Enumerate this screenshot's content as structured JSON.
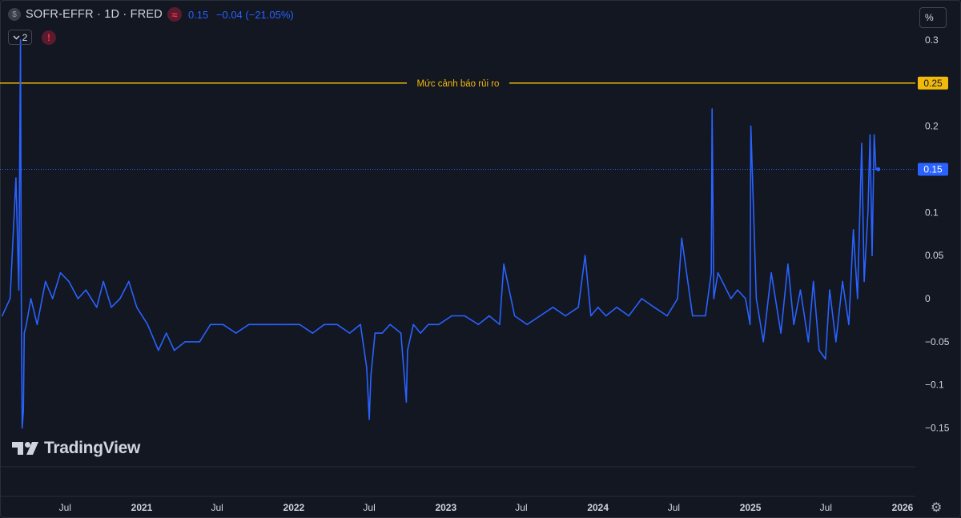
{
  "header": {
    "symbol_icon": "$",
    "title": "SOFR-EFFR · 1D · FRED",
    "source_icon": "≈",
    "last_value": "0.15",
    "change": "−0.04 (−21.05%)"
  },
  "toolbar": {
    "collapse_count": "2",
    "collapse_icon": "chevron-down-icon",
    "warning_icon": "!",
    "scale_label": "%"
  },
  "branding": {
    "logo_text": "TradingView"
  },
  "settings_icon": "⚙",
  "colors": {
    "background": "#131722",
    "series": "#2962ff",
    "alert_line": "#f0b90b",
    "grid": "#2a2e39",
    "axis_text": "#d1d4dc",
    "last_price_label": "#2962ff"
  },
  "chart_data": {
    "type": "line",
    "title": "SOFR-EFFR · 1D · FRED",
    "ylabel": "%",
    "ylim": [
      -0.165,
      0.31
    ],
    "y_ticks": [
      0.3,
      0.2,
      0.1,
      0.05,
      0,
      -0.05,
      -0.1,
      -0.15
    ],
    "y_tick_labels": [
      "0.3",
      "0.2",
      "0.1",
      "0.05",
      "0",
      "−0.05",
      "−0.1",
      "−0.15"
    ],
    "x_ticks": [
      "Jul",
      "2021",
      "Jul",
      "2022",
      "Jul",
      "2023",
      "Jul",
      "2024",
      "Jul",
      "2025",
      "Jul",
      "2026"
    ],
    "x_tick_dates": [
      "2020-07-01",
      "2021-01-01",
      "2021-07-01",
      "2022-01-01",
      "2022-07-01",
      "2023-01-01",
      "2023-07-01",
      "2024-01-01",
      "2024-07-01",
      "2025-01-01",
      "2025-07-01",
      "2026-01-01"
    ],
    "horizontal_line": {
      "label": "Mức cảnh báo rủi ro",
      "value": 0.25,
      "axis_label": "0.25"
    },
    "last_value": {
      "value": 0.15,
      "axis_label": "0.15"
    },
    "series": [
      {
        "x": [
          "2020-02-01",
          "2020-02-20",
          "2020-03-05",
          "2020-03-12",
          "2020-03-16",
          "2020-03-18",
          "2020-03-20",
          "2020-03-23",
          "2020-03-25",
          "2020-03-30",
          "2020-04-10",
          "2020-04-25",
          "2020-05-15",
          "2020-06-01",
          "2020-06-20",
          "2020-07-10",
          "2020-08-01",
          "2020-08-20",
          "2020-09-15",
          "2020-10-01",
          "2020-10-20",
          "2020-11-10",
          "2020-12-01",
          "2020-12-20",
          "2021-01-15",
          "2021-02-10",
          "2021-03-01",
          "2021-03-20",
          "2021-04-15",
          "2021-05-20",
          "2021-06-15",
          "2021-07-15",
          "2021-08-15",
          "2021-09-15",
          "2021-10-15",
          "2021-11-10",
          "2021-12-10",
          "2022-01-15",
          "2022-02-15",
          "2022-03-15",
          "2022-04-15",
          "2022-05-15",
          "2022-06-10",
          "2022-06-25",
          "2022-07-01",
          "2022-07-05",
          "2022-07-15",
          "2022-08-01",
          "2022-08-20",
          "2022-09-15",
          "2022-09-28",
          "2022-10-01",
          "2022-10-15",
          "2022-11-01",
          "2022-11-20",
          "2022-12-15",
          "2023-01-15",
          "2023-02-15",
          "2023-03-20",
          "2023-04-15",
          "2023-05-10",
          "2023-05-20",
          "2023-06-15",
          "2023-07-15",
          "2023-08-15",
          "2023-09-15",
          "2023-10-15",
          "2023-11-15",
          "2023-12-01",
          "2023-12-15",
          "2024-01-01",
          "2024-01-20",
          "2024-02-15",
          "2024-03-15",
          "2024-04-15",
          "2024-05-15",
          "2024-06-15",
          "2024-07-10",
          "2024-07-20",
          "2024-08-15",
          "2024-09-15",
          "2024-09-29",
          "2024-10-01",
          "2024-10-05",
          "2024-10-15",
          "2024-11-15",
          "2024-12-01",
          "2024-12-20",
          "2024-12-31",
          "2025-01-02",
          "2025-01-15",
          "2025-02-01",
          "2025-02-20",
          "2025-03-15",
          "2025-04-01",
          "2025-04-15",
          "2025-05-01",
          "2025-05-20",
          "2025-06-01",
          "2025-06-15",
          "2025-06-30",
          "2025-07-10",
          "2025-07-25",
          "2025-08-10",
          "2025-08-25",
          "2025-09-05",
          "2025-09-15",
          "2025-09-25",
          "2025-10-01",
          "2025-10-10",
          "2025-10-15",
          "2025-10-20",
          "2025-10-25",
          "2025-10-29",
          "2025-10-31"
        ],
        "y": [
          -0.02,
          0.0,
          0.14,
          0.01,
          0.3,
          0.0,
          -0.15,
          -0.13,
          -0.04,
          -0.03,
          0.0,
          -0.03,
          0.02,
          0.0,
          0.03,
          0.02,
          0.0,
          0.01,
          -0.01,
          0.02,
          -0.01,
          0.0,
          0.02,
          -0.01,
          -0.03,
          -0.06,
          -0.04,
          -0.06,
          -0.05,
          -0.05,
          -0.03,
          -0.03,
          -0.04,
          -0.03,
          -0.03,
          -0.03,
          -0.03,
          -0.03,
          -0.04,
          -0.03,
          -0.03,
          -0.04,
          -0.03,
          -0.08,
          -0.14,
          -0.09,
          -0.04,
          -0.04,
          -0.03,
          -0.04,
          -0.12,
          -0.06,
          -0.03,
          -0.04,
          -0.03,
          -0.03,
          -0.02,
          -0.02,
          -0.03,
          -0.02,
          -0.03,
          0.04,
          -0.02,
          -0.03,
          -0.02,
          -0.01,
          -0.02,
          -0.01,
          0.05,
          -0.02,
          -0.01,
          -0.02,
          -0.01,
          -0.02,
          0.0,
          -0.01,
          -0.02,
          0.0,
          0.07,
          -0.02,
          -0.02,
          0.03,
          0.22,
          0.0,
          0.03,
          0.0,
          0.01,
          0.0,
          -0.03,
          0.2,
          0.0,
          -0.05,
          0.03,
          -0.04,
          0.04,
          -0.03,
          0.01,
          -0.05,
          0.02,
          -0.06,
          -0.07,
          0.01,
          -0.05,
          0.02,
          -0.03,
          0.08,
          0.0,
          0.18,
          0.02,
          0.1,
          0.19,
          0.05,
          0.19,
          0.15,
          0.15
        ]
      }
    ]
  }
}
